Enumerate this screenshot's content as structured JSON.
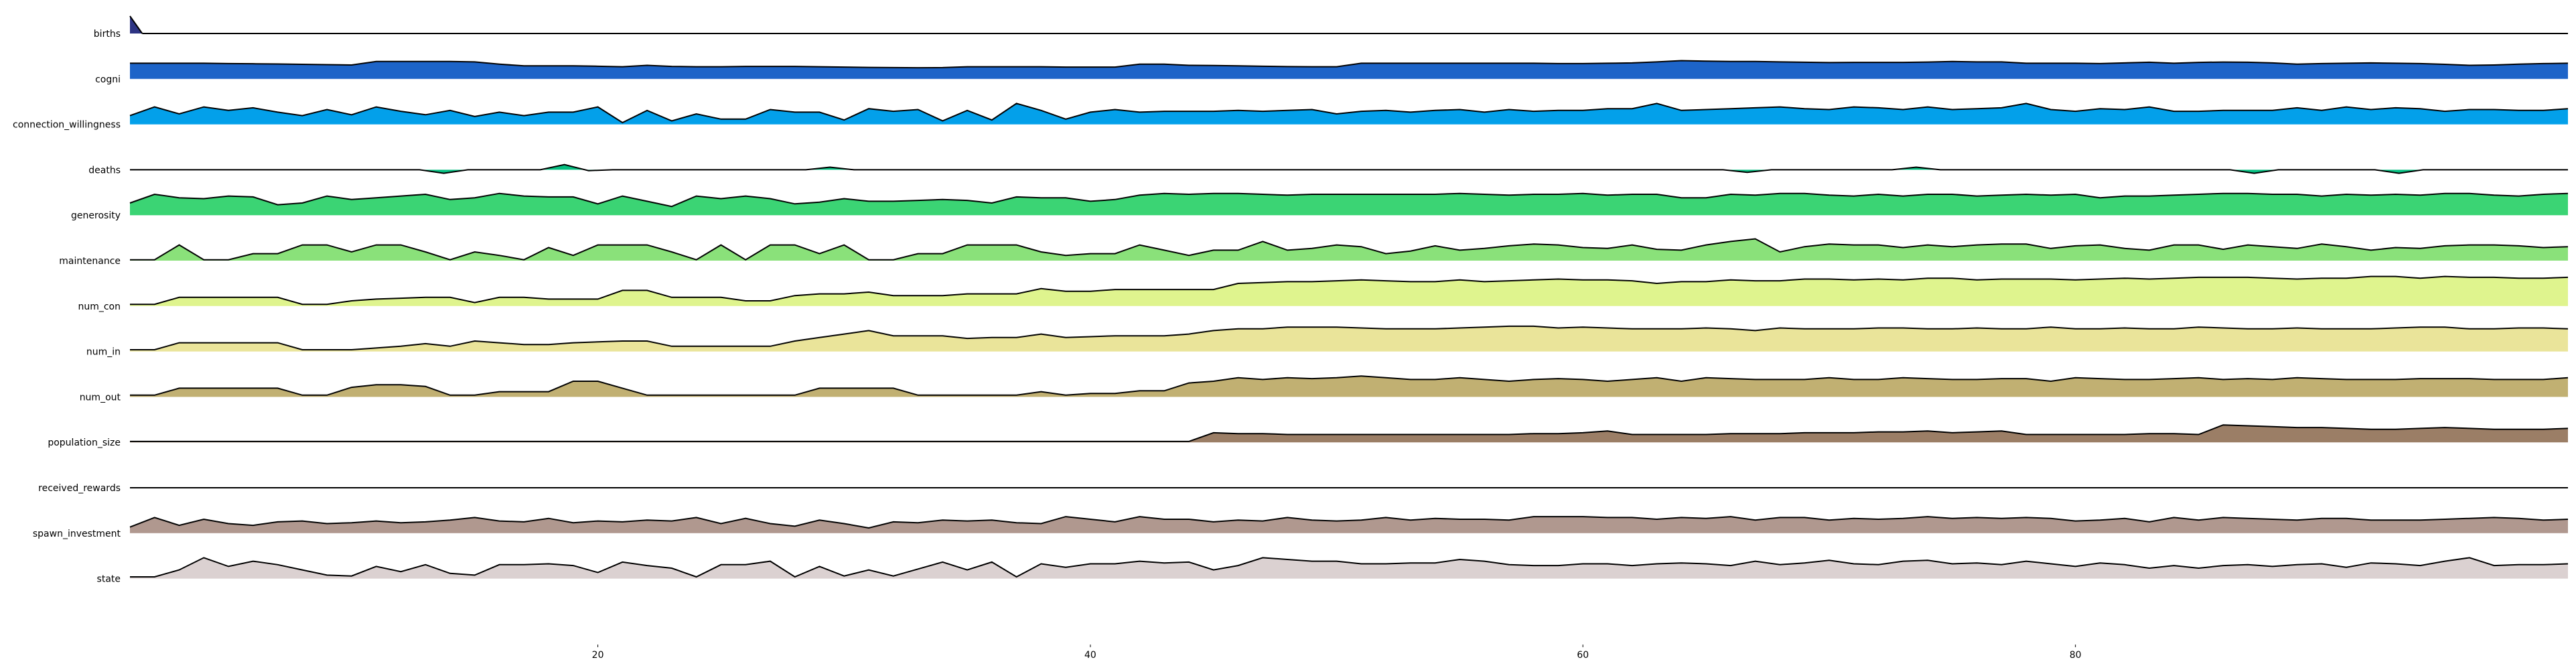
{
  "chart_data": {
    "type": "area",
    "title": "",
    "xlabel": "",
    "ylabel": "",
    "xlim": [
      1,
      100
    ],
    "xticks": [
      20,
      40,
      60,
      80
    ],
    "grid": false,
    "legend": "none",
    "series": [
      {
        "name": "births",
        "color": "#2d3483",
        "values": [
          1,
          0
        ]
      },
      {
        "name": "cogni",
        "color": "#1d64c8",
        "values": [
          0.9,
          0.9,
          0.9,
          0.9,
          0.88,
          0.87,
          0.86,
          0.84,
          0.82,
          0.8,
          1.0,
          1.0,
          1.0,
          1.0,
          0.98,
          0.85,
          0.75,
          0.75,
          0.75,
          0.73,
          0.7,
          0.78,
          0.72,
          0.7,
          0.7,
          0.72,
          0.72,
          0.72,
          0.7,
          0.68,
          0.66,
          0.65,
          0.64,
          0.65,
          0.7,
          0.7,
          0.7,
          0.7,
          0.68,
          0.68,
          0.68,
          0.85,
          0.85,
          0.78,
          0.77,
          0.75,
          0.73,
          0.71,
          0.7,
          0.7,
          0.9,
          0.9,
          0.9,
          0.9,
          0.9,
          0.9,
          0.9,
          0.9,
          0.88,
          0.88,
          0.9,
          0.92,
          0.98,
          1.05,
          1.02,
          1.0,
          1.0,
          0.98,
          0.96,
          0.94,
          0.95,
          0.95,
          0.95,
          0.97,
          1.0,
          0.98,
          0.98,
          0.9,
          0.9,
          0.9,
          0.88,
          0.92,
          0.96,
          0.9,
          0.95,
          0.97,
          0.96,
          0.92,
          0.85,
          0.88,
          0.9,
          0.92,
          0.9,
          0.88,
          0.84,
          0.78,
          0.8,
          0.85,
          0.88,
          0.9
        ]
      },
      {
        "name": "connection_willingness",
        "color": "#03a0ea",
        "values": [
          0.5,
          1.0,
          0.6,
          1.0,
          0.8,
          0.95,
          0.7,
          0.5,
          0.85,
          0.55,
          1.0,
          0.75,
          0.55,
          0.8,
          0.45,
          0.7,
          0.5,
          0.7,
          0.7,
          1.0,
          0.1,
          0.8,
          0.2,
          0.6,
          0.3,
          0.3,
          0.85,
          0.7,
          0.7,
          0.25,
          0.9,
          0.75,
          0.85,
          0.2,
          0.8,
          0.25,
          1.2,
          0.8,
          0.3,
          0.7,
          0.85,
          0.7,
          0.75,
          0.75,
          0.75,
          0.8,
          0.75,
          0.8,
          0.85,
          0.6,
          0.75,
          0.8,
          0.7,
          0.8,
          0.85,
          0.7,
          0.85,
          0.75,
          0.8,
          0.8,
          0.9,
          0.9,
          1.2,
          0.8,
          0.85,
          0.9,
          0.95,
          1.0,
          0.9,
          0.85,
          1.0,
          0.95,
          0.85,
          1.0,
          0.85,
          0.9,
          0.95,
          1.2,
          0.85,
          0.75,
          0.9,
          0.85,
          1.0,
          0.75,
          0.75,
          0.8,
          0.8,
          0.8,
          0.95,
          0.8,
          1.0,
          0.85,
          0.95,
          0.9,
          0.75,
          0.85,
          0.85,
          0.8,
          0.8,
          0.9
        ]
      },
      {
        "name": "deaths",
        "color": "#06be80",
        "values": [
          0,
          0,
          0,
          0,
          0,
          0,
          0,
          0,
          0,
          0,
          0,
          0,
          0,
          -0.2,
          0,
          0,
          0,
          0,
          0.3,
          -0.05,
          0,
          0,
          0,
          0,
          0,
          0,
          0,
          0,
          0,
          0.15,
          0,
          0,
          0,
          0,
          0,
          0,
          0,
          0,
          0,
          0,
          0,
          0,
          0,
          0,
          0,
          0,
          0,
          0,
          0,
          0,
          0,
          0,
          0,
          0,
          0,
          0,
          0,
          0,
          0,
          0,
          0,
          0,
          0,
          0,
          0,
          0,
          0,
          -0.15,
          0,
          0,
          0,
          0,
          0,
          0,
          0.15,
          0,
          0,
          0,
          0,
          0,
          0,
          0,
          0,
          0,
          0,
          0,
          0,
          0,
          -0.2,
          0,
          0,
          0,
          0,
          0,
          -0.2,
          0,
          0,
          0,
          0,
          0,
          0,
          0
        ]
      },
      {
        "name": "generosity",
        "color": "#3bd474",
        "values": [
          0.7,
          1.2,
          1.0,
          0.95,
          1.1,
          1.05,
          0.6,
          0.7,
          1.1,
          0.9,
          1.0,
          1.1,
          1.2,
          0.9,
          1.0,
          1.25,
          1.1,
          1.05,
          1.05,
          0.65,
          1.1,
          0.8,
          0.5,
          1.1,
          0.95,
          1.1,
          0.95,
          0.65,
          0.75,
          0.95,
          0.8,
          0.8,
          0.85,
          0.9,
          0.85,
          0.7,
          1.05,
          1.0,
          1.0,
          0.8,
          0.9,
          1.15,
          1.25,
          1.2,
          1.25,
          1.25,
          1.2,
          1.15,
          1.2,
          1.2,
          1.2,
          1.2,
          1.2,
          1.2,
          1.25,
          1.2,
          1.15,
          1.2,
          1.2,
          1.25,
          1.15,
          1.2,
          1.2,
          1.0,
          1.0,
          1.2,
          1.15,
          1.25,
          1.25,
          1.15,
          1.1,
          1.2,
          1.1,
          1.2,
          1.2,
          1.1,
          1.15,
          1.2,
          1.15,
          1.2,
          1.0,
          1.1,
          1.1,
          1.15,
          1.2,
          1.25,
          1.25,
          1.2,
          1.2,
          1.1,
          1.2,
          1.15,
          1.2,
          1.15,
          1.25,
          1.25,
          1.15,
          1.1,
          1.2,
          1.25
        ]
      },
      {
        "name": "maintenance",
        "color": "#8ae17a",
        "values": [
          0.05,
          0.05,
          0.9,
          0.05,
          0.05,
          0.4,
          0.4,
          0.9,
          0.9,
          0.5,
          0.9,
          0.9,
          0.5,
          0.05,
          0.5,
          0.3,
          0.05,
          0.75,
          0.3,
          0.9,
          0.9,
          0.9,
          0.5,
          0.05,
          0.9,
          0.05,
          0.9,
          0.9,
          0.4,
          0.9,
          0.05,
          0.05,
          0.4,
          0.4,
          0.9,
          0.9,
          0.9,
          0.5,
          0.3,
          0.4,
          0.4,
          0.9,
          0.6,
          0.3,
          0.6,
          0.6,
          1.1,
          0.6,
          0.7,
          0.9,
          0.8,
          0.4,
          0.55,
          0.85,
          0.6,
          0.7,
          0.85,
          0.95,
          0.9,
          0.75,
          0.7,
          0.9,
          0.65,
          0.6,
          0.9,
          1.1,
          1.25,
          0.5,
          0.8,
          0.95,
          0.9,
          0.9,
          0.75,
          0.9,
          0.8,
          0.9,
          0.95,
          0.95,
          0.7,
          0.85,
          0.9,
          0.7,
          0.6,
          0.9,
          0.9,
          0.65,
          0.9,
          0.8,
          0.7,
          0.95,
          0.8,
          0.6,
          0.75,
          0.7,
          0.85,
          0.9,
          0.9,
          0.85,
          0.75,
          0.8
        ]
      },
      {
        "name": "num_con",
        "color": "#dff48e",
        "values": [
          0.1,
          0.1,
          0.5,
          0.5,
          0.5,
          0.5,
          0.5,
          0.1,
          0.1,
          0.3,
          0.4,
          0.45,
          0.5,
          0.5,
          0.2,
          0.5,
          0.5,
          0.4,
          0.4,
          0.4,
          0.9,
          0.9,
          0.5,
          0.5,
          0.5,
          0.3,
          0.3,
          0.6,
          0.7,
          0.7,
          0.8,
          0.6,
          0.6,
          0.6,
          0.7,
          0.7,
          0.7,
          1.0,
          0.85,
          0.85,
          0.95,
          0.95,
          0.95,
          0.95,
          0.95,
          1.3,
          1.35,
          1.4,
          1.4,
          1.45,
          1.5,
          1.45,
          1.4,
          1.4,
          1.5,
          1.4,
          1.45,
          1.5,
          1.55,
          1.5,
          1.5,
          1.45,
          1.3,
          1.4,
          1.4,
          1.5,
          1.45,
          1.45,
          1.55,
          1.55,
          1.5,
          1.55,
          1.5,
          1.6,
          1.6,
          1.5,
          1.55,
          1.55,
          1.55,
          1.5,
          1.55,
          1.6,
          1.55,
          1.6,
          1.65,
          1.65,
          1.65,
          1.6,
          1.55,
          1.6,
          1.6,
          1.7,
          1.7,
          1.6,
          1.7,
          1.65,
          1.65,
          1.6,
          1.6,
          1.65
        ]
      },
      {
        "name": "num_in",
        "color": "#eae49a",
        "values": [
          0.1,
          0.1,
          0.5,
          0.5,
          0.5,
          0.5,
          0.5,
          0.1,
          0.1,
          0.1,
          0.2,
          0.3,
          0.45,
          0.3,
          0.6,
          0.5,
          0.4,
          0.4,
          0.5,
          0.55,
          0.6,
          0.6,
          0.3,
          0.3,
          0.3,
          0.3,
          0.3,
          0.6,
          0.8,
          1.0,
          1.2,
          0.9,
          0.9,
          0.9,
          0.75,
          0.8,
          0.8,
          1.0,
          0.8,
          0.85,
          0.9,
          0.9,
          0.9,
          1.0,
          1.2,
          1.3,
          1.3,
          1.4,
          1.4,
          1.4,
          1.35,
          1.3,
          1.3,
          1.3,
          1.35,
          1.4,
          1.45,
          1.45,
          1.35,
          1.4,
          1.35,
          1.3,
          1.3,
          1.3,
          1.35,
          1.3,
          1.2,
          1.35,
          1.3,
          1.3,
          1.3,
          1.35,
          1.35,
          1.3,
          1.3,
          1.35,
          1.3,
          1.3,
          1.4,
          1.3,
          1.3,
          1.35,
          1.3,
          1.3,
          1.4,
          1.35,
          1.3,
          1.3,
          1.35,
          1.3,
          1.3,
          1.3,
          1.35,
          1.4,
          1.4,
          1.3,
          1.3,
          1.35,
          1.35,
          1.3
        ]
      },
      {
        "name": "num_out",
        "color": "#c1b072",
        "values": [
          0.1,
          0.1,
          0.5,
          0.5,
          0.5,
          0.5,
          0.5,
          0.1,
          0.1,
          0.55,
          0.7,
          0.7,
          0.6,
          0.1,
          0.1,
          0.3,
          0.3,
          0.3,
          0.9,
          0.9,
          0.5,
          0.1,
          0.1,
          0.1,
          0.1,
          0.1,
          0.1,
          0.1,
          0.5,
          0.5,
          0.5,
          0.5,
          0.1,
          0.1,
          0.1,
          0.1,
          0.1,
          0.3,
          0.1,
          0.2,
          0.2,
          0.35,
          0.35,
          0.8,
          0.9,
          1.1,
          1.0,
          1.1,
          1.05,
          1.1,
          1.2,
          1.1,
          1.0,
          1.0,
          1.1,
          1.0,
          0.9,
          1.0,
          1.05,
          1.0,
          0.9,
          1.0,
          1.1,
          0.9,
          1.1,
          1.05,
          1.0,
          1.0,
          1.0,
          1.1,
          1.0,
          1.0,
          1.1,
          1.05,
          1.0,
          1.0,
          1.05,
          1.05,
          0.9,
          1.1,
          1.05,
          1.0,
          1.0,
          1.05,
          1.1,
          1.0,
          1.05,
          1.0,
          1.1,
          1.05,
          1.0,
          1.0,
          1.0,
          1.05,
          1.05,
          1.05,
          1.0,
          1.0,
          1.0,
          1.1
        ]
      },
      {
        "name": "population_size",
        "color": "#9b7e66",
        "values": [
          0.05,
          0.05,
          0.05,
          0.05,
          0.05,
          0.05,
          0.05,
          0.05,
          0.05,
          0.05,
          0.05,
          0.05,
          0.05,
          0.05,
          0.05,
          0.05,
          0.05,
          0.05,
          0.05,
          0.05,
          0.05,
          0.05,
          0.05,
          0.05,
          0.05,
          0.05,
          0.05,
          0.05,
          0.05,
          0.05,
          0.05,
          0.05,
          0.05,
          0.05,
          0.05,
          0.05,
          0.05,
          0.05,
          0.05,
          0.05,
          0.05,
          0.05,
          0.05,
          0.05,
          0.55,
          0.5,
          0.5,
          0.45,
          0.45,
          0.45,
          0.45,
          0.45,
          0.45,
          0.45,
          0.45,
          0.45,
          0.45,
          0.5,
          0.5,
          0.55,
          0.65,
          0.45,
          0.45,
          0.45,
          0.45,
          0.5,
          0.5,
          0.5,
          0.55,
          0.55,
          0.55,
          0.6,
          0.6,
          0.65,
          0.55,
          0.6,
          0.65,
          0.45,
          0.45,
          0.45,
          0.45,
          0.45,
          0.5,
          0.5,
          0.45,
          1.0,
          0.95,
          0.9,
          0.85,
          0.85,
          0.8,
          0.75,
          0.75,
          0.8,
          0.85,
          0.8,
          0.75,
          0.75,
          0.75,
          0.8
        ]
      },
      {
        "name": "received_rewards",
        "color": "#a8938c",
        "values": [
          0,
          0
        ]
      },
      {
        "name": "spawn_investment",
        "color": "#b0988f",
        "values": [
          0.35,
          0.9,
          0.45,
          0.8,
          0.55,
          0.45,
          0.65,
          0.7,
          0.55,
          0.6,
          0.7,
          0.6,
          0.65,
          0.75,
          0.9,
          0.7,
          0.65,
          0.85,
          0.6,
          0.7,
          0.65,
          0.75,
          0.7,
          0.9,
          0.55,
          0.85,
          0.55,
          0.4,
          0.75,
          0.55,
          0.3,
          0.65,
          0.6,
          0.75,
          0.7,
          0.75,
          0.6,
          0.55,
          0.95,
          0.8,
          0.65,
          0.95,
          0.8,
          0.8,
          0.65,
          0.75,
          0.7,
          0.9,
          0.75,
          0.7,
          0.75,
          0.9,
          0.75,
          0.85,
          0.8,
          0.8,
          0.75,
          0.95,
          0.95,
          0.95,
          0.9,
          0.9,
          0.8,
          0.9,
          0.85,
          0.95,
          0.75,
          0.9,
          0.9,
          0.75,
          0.85,
          0.8,
          0.85,
          0.95,
          0.85,
          0.9,
          0.85,
          0.9,
          0.85,
          0.7,
          0.75,
          0.85,
          0.65,
          0.9,
          0.75,
          0.9,
          0.85,
          0.8,
          0.75,
          0.85,
          0.85,
          0.75,
          0.75,
          0.75,
          0.8,
          0.85,
          0.9,
          0.85,
          0.75,
          0.8
        ]
      },
      {
        "name": "state",
        "color": "#dbd1d1",
        "values": [
          0.1,
          0.1,
          0.5,
          1.2,
          0.7,
          1.0,
          0.8,
          0.5,
          0.2,
          0.15,
          0.7,
          0.4,
          0.8,
          0.3,
          0.2,
          0.8,
          0.8,
          0.85,
          0.75,
          0.35,
          0.95,
          0.75,
          0.6,
          0.1,
          0.8,
          0.8,
          1.0,
          0.1,
          0.7,
          0.15,
          0.5,
          0.15,
          0.55,
          0.95,
          0.5,
          0.95,
          0.1,
          0.85,
          0.65,
          0.85,
          0.85,
          1.0,
          0.9,
          0.95,
          0.5,
          0.75,
          1.2,
          1.1,
          1.0,
          1.0,
          0.85,
          0.85,
          0.9,
          0.9,
          1.1,
          1.0,
          0.8,
          0.75,
          0.75,
          0.85,
          0.85,
          0.75,
          0.85,
          0.9,
          0.85,
          0.75,
          1.0,
          0.8,
          0.9,
          1.05,
          0.85,
          0.8,
          1.0,
          1.05,
          0.85,
          0.9,
          0.8,
          1.0,
          0.85,
          0.7,
          0.9,
          0.8,
          0.6,
          0.75,
          0.6,
          0.75,
          0.8,
          0.7,
          0.8,
          0.85,
          0.65,
          0.9,
          0.85,
          0.75,
          1.0,
          1.2,
          0.75,
          0.8,
          0.8,
          0.85
        ]
      }
    ]
  }
}
